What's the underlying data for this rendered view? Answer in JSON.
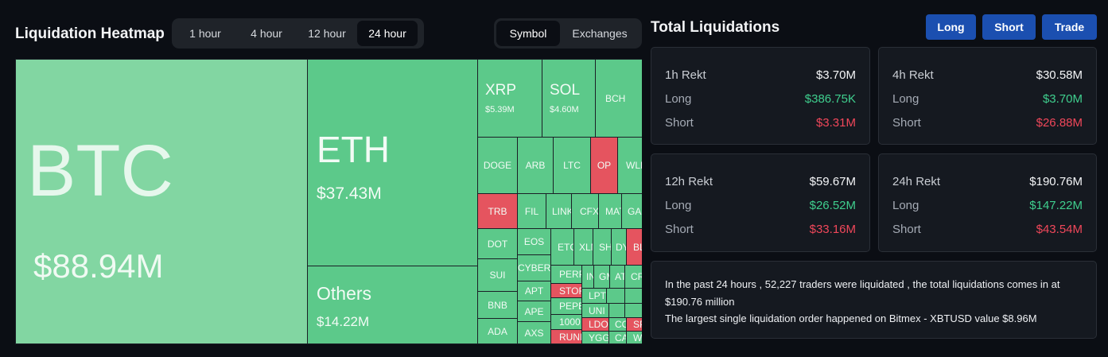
{
  "heatmap": {
    "title": "Liquidation Heatmap",
    "time_options": [
      "1 hour",
      "4 hour",
      "12 hour",
      "24 hour"
    ],
    "time_selected": "24 hour",
    "mode_options": [
      "Symbol",
      "Exchanges"
    ],
    "mode_selected": "Symbol",
    "colors": {
      "long_dominant": "#5cc98a",
      "short_dominant": "#e5545f",
      "btc": "#82d6a2"
    },
    "tiles": {
      "btc": {
        "symbol": "BTC",
        "value": "$88.94M"
      },
      "eth": {
        "symbol": "ETH",
        "value": "$37.43M"
      },
      "others": {
        "symbol": "Others",
        "value": "$14.22M"
      },
      "xrp": {
        "symbol": "XRP",
        "value": "$5.39M"
      },
      "sol": {
        "symbol": "SOL",
        "value": "$4.60M"
      },
      "bch": {
        "symbol": "BCH"
      },
      "doge": {
        "symbol": "DOGE"
      },
      "arb": {
        "symbol": "ARB"
      },
      "ltc": {
        "symbol": "LTC"
      },
      "op": {
        "symbol": "OP"
      },
      "wld": {
        "symbol": "WLD"
      },
      "trb": {
        "symbol": "TRB"
      },
      "fil": {
        "symbol": "FIL"
      },
      "link": {
        "symbol": "LINK"
      },
      "cfx": {
        "symbol": "CFX"
      },
      "matic": {
        "symbol": "MATIC"
      },
      "gala": {
        "symbol": "GALA"
      },
      "dot": {
        "symbol": "DOT"
      },
      "eos": {
        "symbol": "EOS"
      },
      "etc": {
        "symbol": "ETC"
      },
      "xlm": {
        "symbol": "XLM"
      },
      "shib": {
        "symbol": "SHIB"
      },
      "dydx": {
        "symbol": "DYDX"
      },
      "blur": {
        "symbol": "BLUR"
      },
      "sui": {
        "symbol": "SUI"
      },
      "cyber": {
        "symbol": "CYBER"
      },
      "perp": {
        "symbol": "PERP"
      },
      "in": {
        "symbol": "INJ"
      },
      "gmt": {
        "symbol": "GMT"
      },
      "a": {
        "symbol": "ATOM"
      },
      "c": {
        "symbol": "CRV"
      },
      "apt": {
        "symbol": "APT"
      },
      "storj": {
        "symbol": "STORJ"
      },
      "lpt": {
        "symbol": "LPT"
      },
      "bnb": {
        "symbol": "BNB"
      },
      "ape": {
        "symbol": "APE"
      },
      "pepe": {
        "symbol": "PEPE"
      },
      "uni": {
        "symbol": "UNI"
      },
      "ada": {
        "symbol": "ADA"
      },
      "axs": {
        "symbol": "AXS"
      },
      "1000": {
        "symbol": "1000"
      },
      "ldo": {
        "symbol": "LDO"
      },
      "co": {
        "symbol": "COMP"
      },
      "sp": {
        "symbol": "SPELL"
      },
      "rune": {
        "symbol": "RUNE"
      },
      "ygg": {
        "symbol": "YGG"
      },
      "ca": {
        "symbol": "CA"
      },
      "w": {
        "symbol": "W"
      },
      "tiny1": {
        "symbol": ""
      },
      "tiny2": {
        "symbol": ""
      },
      "tiny3": {
        "symbol": ""
      },
      "tiny4": {
        "symbol": ""
      },
      "tiny5": {
        "symbol": ""
      },
      "tiny6": {
        "symbol": ""
      }
    }
  },
  "totals": {
    "title": "Total Liquidations",
    "buttons": {
      "long": "Long",
      "short": "Short",
      "trade": "Trade"
    },
    "row_labels": {
      "long": "Long",
      "short": "Short"
    },
    "cards": [
      {
        "label": "1h Rekt",
        "total": "$3.70M",
        "long": "$386.75K",
        "short": "$3.31M"
      },
      {
        "label": "4h Rekt",
        "total": "$30.58M",
        "long": "$3.70M",
        "short": "$26.88M"
      },
      {
        "label": "12h Rekt",
        "total": "$59.67M",
        "long": "$26.52M",
        "short": "$33.16M"
      },
      {
        "label": "24h Rekt",
        "total": "$190.76M",
        "long": "$147.22M",
        "short": "$43.54M"
      }
    ],
    "summary": {
      "line1": "In the past 24 hours , 52,227 traders were liquidated , the total liquidations comes in at",
      "line2": "$190.76 million",
      "line3": "The largest single liquidation order happened on Bitmex - XBTUSD value $8.96M"
    }
  }
}
